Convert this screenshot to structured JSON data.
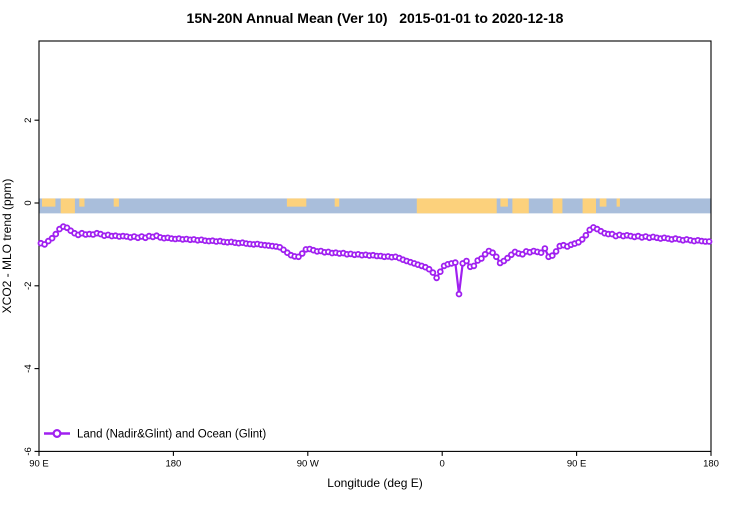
{
  "chart_data": {
    "type": "line",
    "title": "15N-20N Annual Mean (Ver 10)   2015-01-01 to 2020-12-18",
    "xlabel": "Longitude (deg E)",
    "ylabel": "XCO2 - MLO trend (ppm)",
    "xlim": [
      90,
      540
    ],
    "ylim": [
      -6,
      3.9
    ],
    "grid": false,
    "x_ticks": [
      {
        "pos": 90,
        "label": "90 E"
      },
      {
        "pos": 180,
        "label": "180"
      },
      {
        "pos": 270,
        "label": "90 W"
      },
      {
        "pos": 360,
        "label": "0"
      },
      {
        "pos": 450,
        "label": "90 E"
      },
      {
        "pos": 540,
        "label": "180"
      }
    ],
    "y_ticks": [
      {
        "pos": 2,
        "label": "2"
      },
      {
        "pos": 0,
        "label": "0"
      },
      {
        "pos": -2,
        "label": "-2"
      },
      {
        "pos": -4,
        "label": "-4"
      },
      {
        "pos": -6,
        "label": "-6"
      }
    ],
    "legend": {
      "label": "Land (Nadir&Glint) and Ocean (Glint)",
      "color": "#A020F0",
      "position": "bottom-left"
    },
    "band": {
      "description": "land-ocean strip near y=0",
      "y_top": 0.11,
      "y_bottom": -0.25,
      "ocean_color": "#A9BEDB",
      "land_color": "#FCD17C",
      "land_segments": [
        {
          "from": 92,
          "to": 101,
          "partial": true
        },
        {
          "from": 104.5,
          "to": 114,
          "partial": false
        },
        {
          "from": 117,
          "to": 120.5,
          "partial": true
        },
        {
          "from": 140,
          "to": 143.5,
          "partial": true
        },
        {
          "from": 256,
          "to": 269,
          "partial": true
        },
        {
          "from": 288,
          "to": 291,
          "partial": true
        },
        {
          "from": 343,
          "to": 396.5,
          "partial": false
        },
        {
          "from": 399,
          "to": 404,
          "partial": true
        },
        {
          "from": 407,
          "to": 418,
          "partial": false
        },
        {
          "from": 434,
          "to": 440.5,
          "partial": false
        },
        {
          "from": 454,
          "to": 463,
          "partial": false
        },
        {
          "from": 465.5,
          "to": 470,
          "partial": true
        },
        {
          "from": 476.8,
          "to": 479,
          "partial": true
        }
      ]
    },
    "series": [
      {
        "name": "Land (Nadir&Glint) and Ocean (Glint)",
        "color": "#A020F0",
        "marker": "open-circle",
        "x_start": 91.25,
        "x_step": 2.5,
        "values": [
          -0.97,
          -1.0,
          -0.92,
          -0.85,
          -0.75,
          -0.63,
          -0.57,
          -0.6,
          -0.67,
          -0.73,
          -0.77,
          -0.73,
          -0.76,
          -0.75,
          -0.76,
          -0.73,
          -0.75,
          -0.79,
          -0.77,
          -0.8,
          -0.79,
          -0.81,
          -0.8,
          -0.81,
          -0.83,
          -0.81,
          -0.84,
          -0.81,
          -0.84,
          -0.8,
          -0.82,
          -0.79,
          -0.83,
          -0.85,
          -0.84,
          -0.86,
          -0.87,
          -0.86,
          -0.88,
          -0.87,
          -0.89,
          -0.88,
          -0.9,
          -0.89,
          -0.91,
          -0.92,
          -0.91,
          -0.93,
          -0.92,
          -0.94,
          -0.95,
          -0.94,
          -0.96,
          -0.97,
          -0.96,
          -0.98,
          -0.99,
          -1.0,
          -0.99,
          -1.01,
          -1.02,
          -1.03,
          -1.04,
          -1.05,
          -1.07,
          -1.13,
          -1.2,
          -1.26,
          -1.29,
          -1.3,
          -1.22,
          -1.12,
          -1.11,
          -1.14,
          -1.17,
          -1.16,
          -1.19,
          -1.18,
          -1.21,
          -1.2,
          -1.22,
          -1.21,
          -1.24,
          -1.23,
          -1.25,
          -1.24,
          -1.26,
          -1.25,
          -1.27,
          -1.26,
          -1.28,
          -1.28,
          -1.3,
          -1.29,
          -1.31,
          -1.3,
          -1.33,
          -1.37,
          -1.4,
          -1.43,
          -1.46,
          -1.49,
          -1.52,
          -1.55,
          -1.6,
          -1.68,
          -1.81,
          -1.66,
          -1.52,
          -1.48,
          -1.46,
          -1.44,
          -2.2,
          -1.46,
          -1.4,
          -1.54,
          -1.52,
          -1.39,
          -1.34,
          -1.24,
          -1.16,
          -1.2,
          -1.3,
          -1.45,
          -1.4,
          -1.33,
          -1.25,
          -1.18,
          -1.22,
          -1.24,
          -1.17,
          -1.19,
          -1.16,
          -1.18,
          -1.2,
          -1.1,
          -1.3,
          -1.27,
          -1.17,
          -1.04,
          -1.02,
          -1.05,
          -1.01,
          -0.98,
          -0.95,
          -0.88,
          -0.78,
          -0.65,
          -0.59,
          -0.63,
          -0.68,
          -0.73,
          -0.75,
          -0.75,
          -0.8,
          -0.77,
          -0.8,
          -0.78,
          -0.8,
          -0.82,
          -0.8,
          -0.83,
          -0.81,
          -0.84,
          -0.82,
          -0.84,
          -0.86,
          -0.84,
          -0.86,
          -0.88,
          -0.86,
          -0.88,
          -0.9,
          -0.88,
          -0.9,
          -0.92,
          -0.9,
          -0.92,
          -0.93,
          -0.93
        ]
      }
    ]
  }
}
